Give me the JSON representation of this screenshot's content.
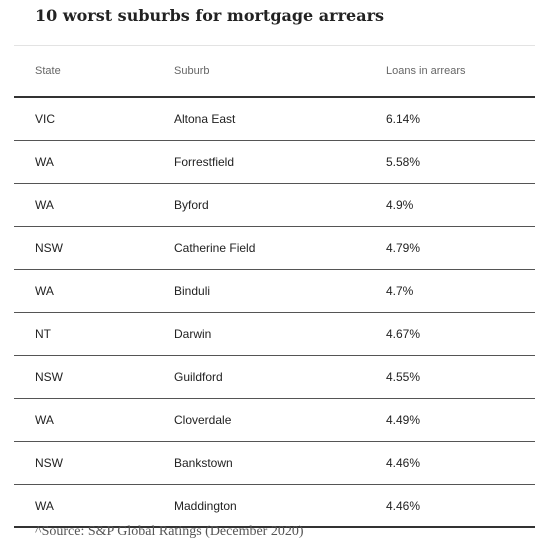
{
  "title": "10 worst suburbs for mortgage arrears",
  "table": {
    "header": [
      "State",
      "Suburb",
      "Loans in arrears"
    ],
    "rows": [
      [
        "VIC",
        "Altona East",
        "6.14%"
      ],
      [
        "WA",
        "Forrestfield",
        "5.58%"
      ],
      [
        "WA",
        "Byford",
        "4.9%"
      ],
      [
        "NSW",
        "Catherine Field",
        "4.79%"
      ],
      [
        "WA",
        "Binduli",
        "4.7%"
      ],
      [
        "NT",
        "Darwin",
        "4.67%"
      ],
      [
        "NSW",
        "Guildford",
        "4.55%"
      ],
      [
        "WA",
        "Cloverdale",
        "4.49%"
      ],
      [
        "NSW",
        "Bankstown",
        "4.46%"
      ],
      [
        "WA",
        "Maddington",
        "4.46%"
      ]
    ]
  },
  "source": "^Source: S&P Global Ratings (December 2020)"
}
